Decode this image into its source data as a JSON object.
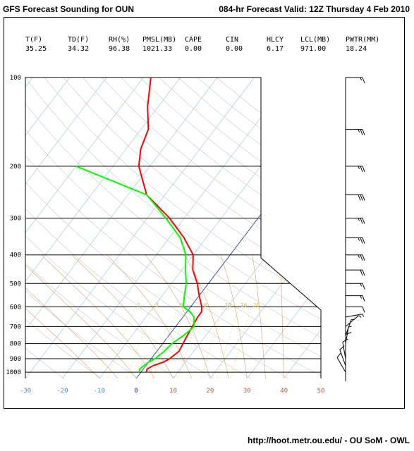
{
  "header": {
    "title_left": "GFS Forecast Sounding for OUN",
    "title_right": "084-hr Forecast Valid: 12Z Thursday 4 Feb 2010"
  },
  "footer": {
    "credit": "http://hoot.metr.ou.edu/ - OU SoM - OWL"
  },
  "chart_data": {
    "type": "line",
    "title": "GFS Forecast Sounding for OUN",
    "subtitle": "084-hr Forecast Valid: 12Z Thursday 4 Feb 2010",
    "stats": [
      {
        "label": "T(F)",
        "value": "35.25"
      },
      {
        "label": "TD(F)",
        "value": "34.32"
      },
      {
        "label": "RH(%)",
        "value": "96.38"
      },
      {
        "label": "PMSL(MB)",
        "value": "1021.33"
      },
      {
        "label": "CAPE",
        "value": "0.00"
      },
      {
        "label": "CIN",
        "value": "0.00"
      },
      {
        "label": "HLCY",
        "value": "6.17"
      },
      {
        "label": "LCL(MB)",
        "value": "971.00"
      },
      {
        "label": "PWTR(MM)",
        "value": "18.24"
      }
    ],
    "x_ticks": [
      "-30",
      "-20",
      "-10",
      "0",
      "10",
      "20",
      "30",
      "40",
      "50"
    ],
    "x_tick_values": [
      -30,
      -20,
      -10,
      0,
      10,
      20,
      30,
      40,
      50
    ],
    "y_ticks": [
      "100",
      "200",
      "300",
      "400",
      "500",
      "600",
      "700",
      "800",
      "900",
      "1000"
    ],
    "y_tick_values": [
      100,
      200,
      300,
      400,
      500,
      600,
      700,
      800,
      900,
      1000
    ],
    "xlim": [
      -30,
      50
    ],
    "ylim": [
      1050,
      100
    ],
    "mixing_ratio_labels": [
      "2",
      "3",
      "5",
      "8",
      "12",
      "16",
      "20"
    ],
    "y_scale": "log",
    "series": [
      {
        "key": "temperature",
        "color": "#ff0000",
        "pressure": [
          1000,
          975,
          950,
          925,
          900,
          850,
          800,
          750,
          700,
          650,
          625,
          600,
          550,
          500,
          450,
          400,
          350,
          300,
          250,
          200,
          175,
          150,
          125,
          100
        ],
        "temp_c": [
          1.5,
          1.0,
          2.0,
          4.0,
          5.0,
          6.0,
          5.5,
          5.0,
          4.5,
          4.0,
          4.0,
          3.0,
          0.0,
          -3.0,
          -7.0,
          -10.0,
          -16.0,
          -24.0,
          -35.0,
          -43.0,
          -46.0,
          -48.0,
          -53.0,
          -58.0
        ]
      },
      {
        "key": "dewpoint",
        "color": "#00ff00",
        "pressure": [
          1000,
          975,
          950,
          925,
          900,
          850,
          800,
          750,
          700,
          650,
          625,
          600,
          550,
          500,
          450,
          400,
          350,
          300,
          250,
          200
        ],
        "temp_c": [
          -0.5,
          -1.0,
          -0.5,
          0.0,
          1.0,
          2.0,
          2.5,
          4.0,
          5.0,
          3.0,
          1.0,
          -2.0,
          -4.0,
          -6.0,
          -9.0,
          -12.0,
          -17.0,
          -25.0,
          -35.0,
          -60.0
        ]
      }
    ],
    "wind_barbs": [
      {
        "pressure": 100,
        "speed_kt": 15,
        "dir_deg": 270
      },
      {
        "pressure": 150,
        "speed_kt": 25,
        "dir_deg": 270
      },
      {
        "pressure": 200,
        "speed_kt": 25,
        "dir_deg": 270
      },
      {
        "pressure": 250,
        "speed_kt": 30,
        "dir_deg": 270
      },
      {
        "pressure": 300,
        "speed_kt": 25,
        "dir_deg": 270
      },
      {
        "pressure": 350,
        "speed_kt": 25,
        "dir_deg": 270
      },
      {
        "pressure": 400,
        "speed_kt": 25,
        "dir_deg": 270
      },
      {
        "pressure": 450,
        "speed_kt": 20,
        "dir_deg": 270
      },
      {
        "pressure": 500,
        "speed_kt": 15,
        "dir_deg": 270
      },
      {
        "pressure": 550,
        "speed_kt": 15,
        "dir_deg": 270
      },
      {
        "pressure": 600,
        "speed_kt": 10,
        "dir_deg": 270
      },
      {
        "pressure": 650,
        "speed_kt": 5,
        "dir_deg": 260
      },
      {
        "pressure": 700,
        "speed_kt": 5,
        "dir_deg": 230
      },
      {
        "pressure": 750,
        "speed_kt": 5,
        "dir_deg": 200
      },
      {
        "pressure": 800,
        "speed_kt": 5,
        "dir_deg": 190
      },
      {
        "pressure": 850,
        "speed_kt": 10,
        "dir_deg": 180
      },
      {
        "pressure": 900,
        "speed_kt": 10,
        "dir_deg": 170
      },
      {
        "pressure": 950,
        "speed_kt": 10,
        "dir_deg": 160
      },
      {
        "pressure": 1000,
        "speed_kt": 10,
        "dir_deg": 150
      }
    ],
    "colors": {
      "temperature": "#ff0000",
      "dewpoint": "#00ff00",
      "isobar": "#000000",
      "isotherm": "#a8c4e4",
      "dry_adiabat": "#c8c8c8",
      "moist_adiabat": "#d8a070",
      "mixing_ratio": "#e8e890",
      "zero_isotherm": "#3050a0"
    }
  }
}
